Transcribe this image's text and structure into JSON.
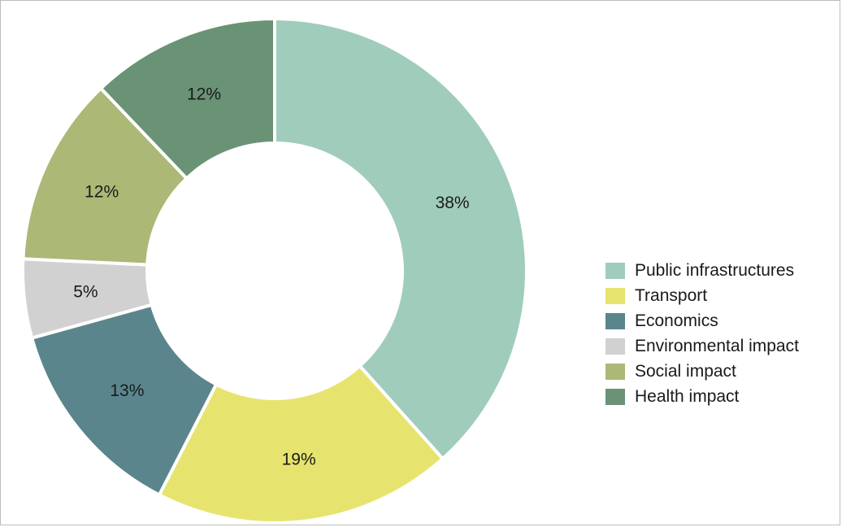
{
  "chart_data": {
    "type": "pie",
    "variant": "donut",
    "title": "",
    "categories": [
      "Public infrastructures",
      "Transport",
      "Economics",
      "Environmental impact",
      "Social impact",
      "Health impact"
    ],
    "values": [
      38,
      19,
      13,
      5,
      12,
      12
    ],
    "labels": [
      "38%",
      "19%",
      "13%",
      "5%",
      "12%",
      "12%"
    ],
    "colors": [
      "#a0ccbb",
      "#e6e46e",
      "#5b858c",
      "#d1d1d1",
      "#abb876",
      "#6a9376"
    ],
    "legend_position": "right",
    "start_angle_deg": 0,
    "direction": "clockwise"
  }
}
